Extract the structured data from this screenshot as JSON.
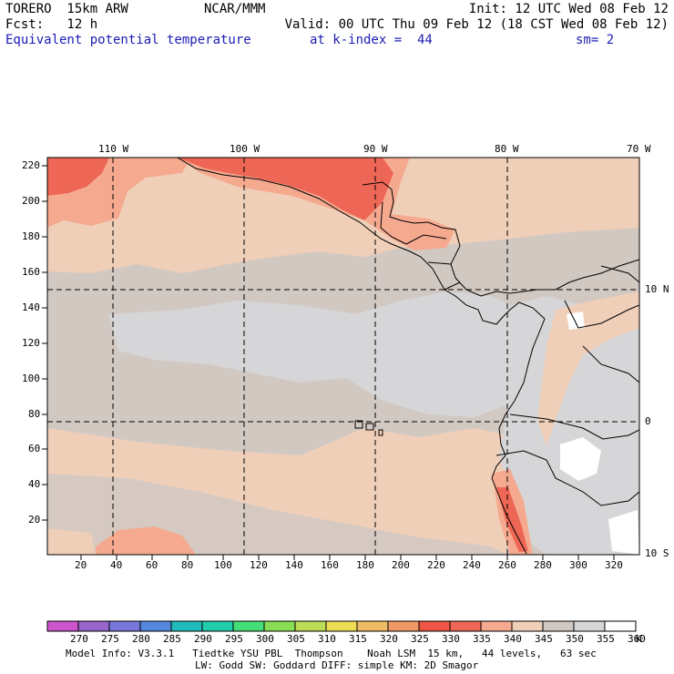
{
  "header": {
    "model": "TORERO  15km ARW",
    "center": "NCAR/MMM",
    "init": "Init: 12 UTC Wed 08 Feb 12",
    "fcst": "Fcst:   12 h",
    "valid": "Valid: 00 UTC Thu 09 Feb 12 (18 CST Wed 08 Feb 12)",
    "field": "Equivalent potential temperature",
    "level": "at k-index =  44",
    "smooth": "sm= 2"
  },
  "axes": {
    "lon_labels": [
      "110 W",
      "100 W",
      "90 W",
      "80 W",
      "70 W"
    ],
    "lat_labels": [
      "10 N",
      "0",
      "10 S"
    ],
    "y_ticks": [
      "220",
      "200",
      "180",
      "160",
      "140",
      "120",
      "100",
      "80",
      "60",
      "40",
      "20"
    ],
    "x_ticks": [
      "20",
      "40",
      "60",
      "80",
      "100",
      "120",
      "140",
      "160",
      "180",
      "200",
      "220",
      "240",
      "260",
      "280",
      "300",
      "320"
    ]
  },
  "colorbar": {
    "values": [
      "270",
      "275",
      "280",
      "285",
      "290",
      "295",
      "300",
      "305",
      "310",
      "315",
      "320",
      "325",
      "330",
      "335",
      "340",
      "345",
      "350",
      "355",
      "360"
    ],
    "unit": "K",
    "colors": [
      "#cc55cc",
      "#9966cc",
      "#7777dd",
      "#5588dd",
      "#22bbbb",
      "#22ccaa",
      "#44dd77",
      "#88dd55",
      "#bbdd55",
      "#eedd55",
      "#eebb66",
      "#ee9966",
      "#ee5544",
      "#ee6655",
      "#f5aa90",
      "#f0cfb8",
      "#d2c8c2",
      "#d6d6d8",
      "#ffffff"
    ]
  },
  "footer": {
    "line1": "Model Info: V3.3.1   Tiedtke YSU PBL  Thompson    Noah LSM  15 km,   44 levels,   63 sec",
    "line2": "LW: Godd SW: Goddard DIFF: simple KM: 2D Smagor"
  },
  "map_colors": {
    "base": "#d2c8c2",
    "peach": "#f0cfb8",
    "salmon": "#f5aa90",
    "red": "#ee6655",
    "light": "#d6d6d8",
    "white": "#ffffff"
  }
}
